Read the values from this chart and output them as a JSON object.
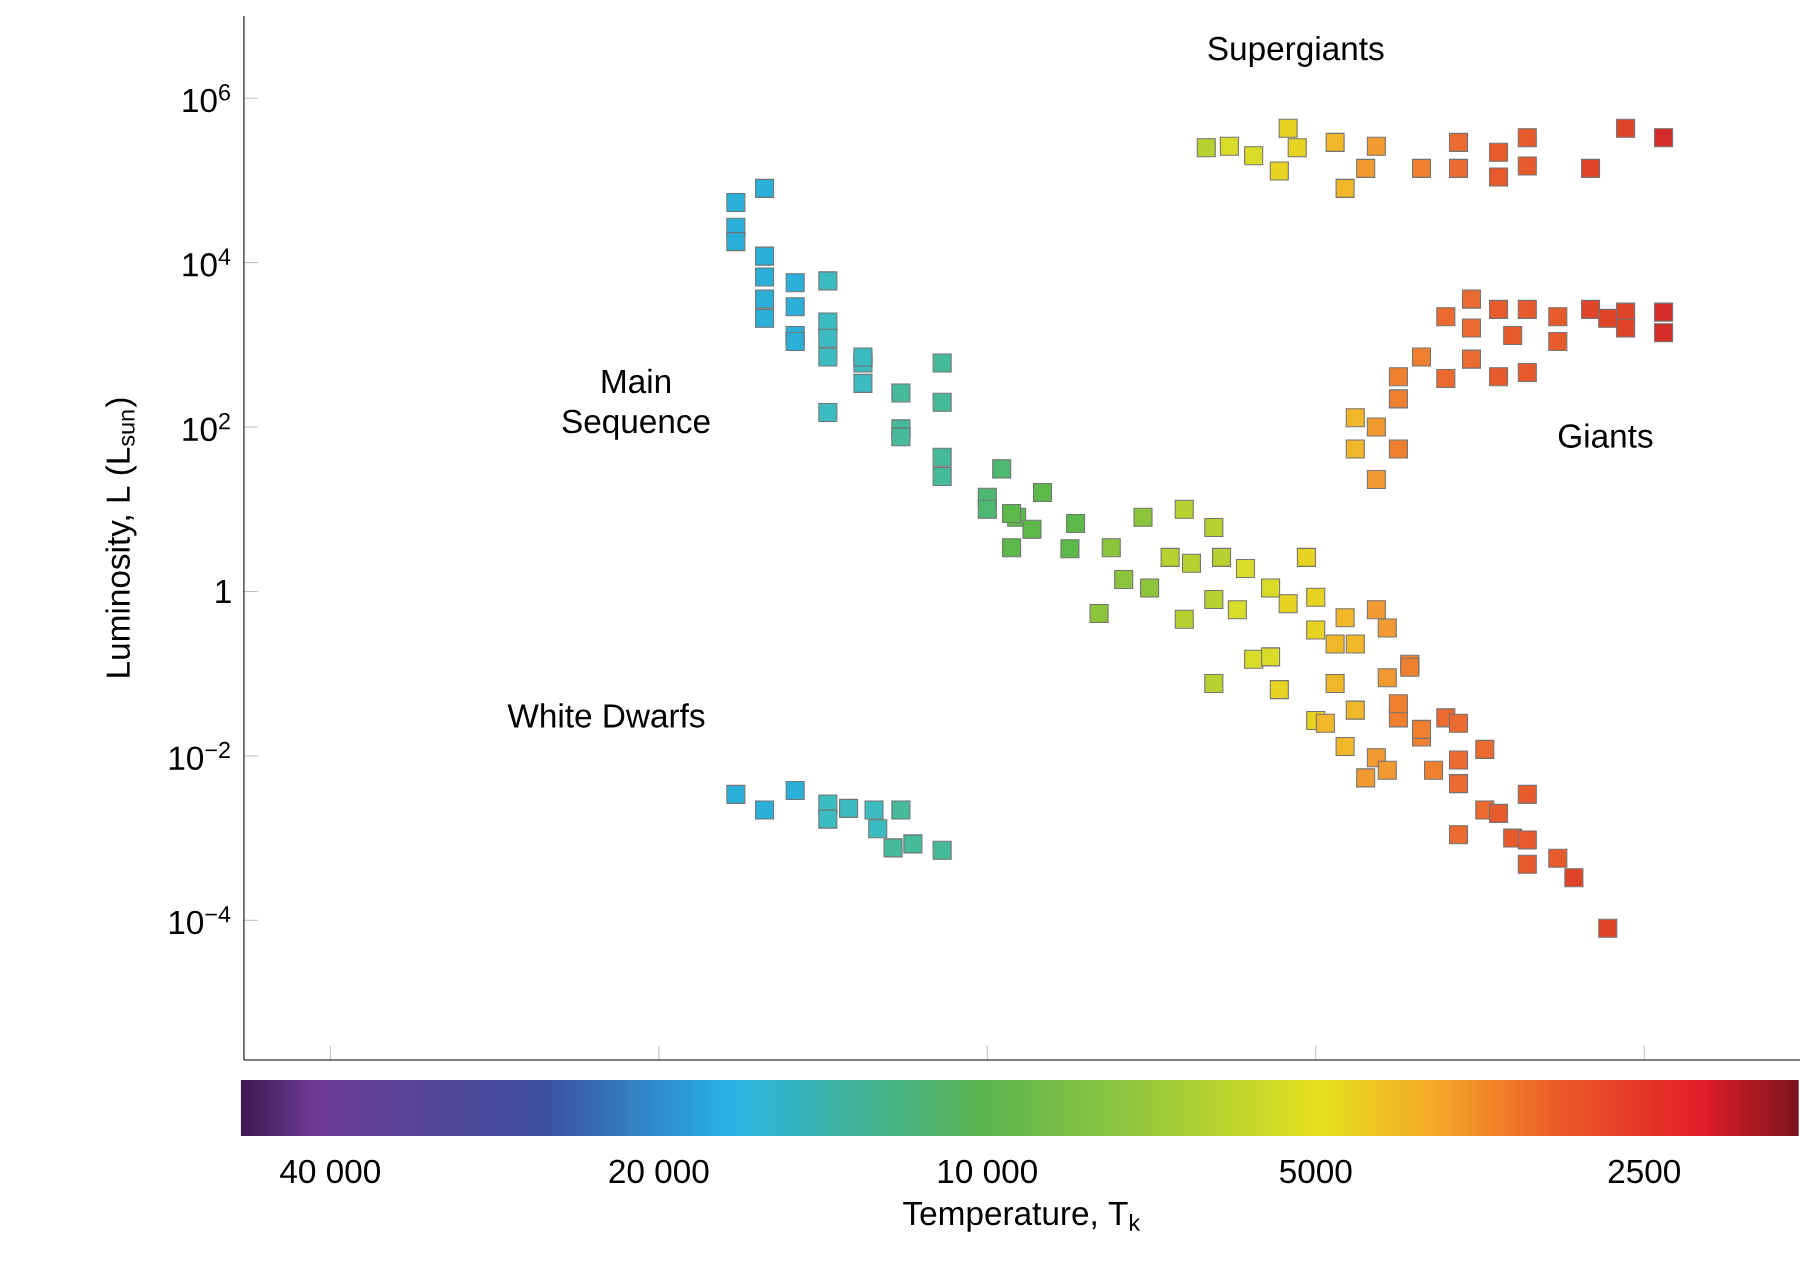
{
  "chart_data": {
    "type": "scatter",
    "xlabel": "Temperature, T$_{k}$",
    "ylabel": "Luminosity, L (L$_{sun}$)",
    "log": "xy",
    "marker": "square",
    "xlim": [
      48000,
      1800
    ],
    "ylim": [
      2e-06,
      10000000.0
    ],
    "xticks": [
      {
        "value": 40000,
        "label": "40 000"
      },
      {
        "value": 20000,
        "label": "20 000"
      },
      {
        "value": 10000,
        "label": "10 000"
      },
      5000,
      2500
    ],
    "yticks": [
      {
        "value": 0.0001,
        "label": "10$^{−4}$"
      },
      {
        "value": 0.01,
        "label": "10$^{−2}$"
      },
      1,
      {
        "value": 100,
        "label": "10$^{2}$"
      },
      {
        "value": 10000,
        "label": "10$^{4}$"
      },
      {
        "value": 1000000,
        "label": "10$^{6}$"
      }
    ],
    "annotations": [
      "Supergiants",
      "Main Sequence",
      "Giants",
      "White Dwarfs"
    ],
    "series": [
      {
        "x": [
          16000,
          17000,
          17000,
          17000,
          16000,
          16000,
          15000,
          14000,
          16000,
          15000,
          16000,
          14000,
          15000,
          15000,
          14000,
          14000,
          13000,
          13000,
          11000,
          13000,
          12000,
          14000,
          12000,
          12000,
          11000,
          11000,
          11000,
          10000,
          9700,
          9400,
          8900,
          9100,
          9500,
          10000,
          9500,
          8300,
          8400,
          7700,
          7200,
          6600,
          6200,
          7900,
          7500,
          7100,
          6800,
          6500,
          6100,
          5800,
          6200,
          6600,
          6200,
          5900,
          5700,
          5500,
          5300,
          5100,
          5000,
          5000,
          5400,
          4700,
          4600,
          4400,
          4300,
          4800,
          5000,
          4600,
          4700,
          4500,
          4300,
          4100,
          4200,
          4000,
          4400,
          5500,
          4800,
          4100,
          4200,
          4000,
          3800,
          3700,
          3500,
          3700,
          3900,
          3700,
          3200,
          3500,
          3400,
          3700,
          3300,
          3200,
          3200,
          3000,
          2900,
          2700,
          4900,
          4300
        ],
        "values": [
          80000,
          54000,
          27000,
          18000,
          12000,
          6700,
          5700,
          6000,
          3600,
          2900,
          2100,
          1900,
          1300,
          1100,
          1200,
          710,
          600,
          710,
          600,
          340,
          260,
          150,
          95,
          76,
          200,
          43,
          25,
          14,
          31,
          8.0,
          16,
          5.7,
          3.4,
          10,
          8.9,
          6.7,
          3.3,
          3.4,
          8.0,
          10,
          6.0,
          0.54,
          1.4,
          1.1,
          2.6,
          2.2,
          2.6,
          1.9,
          0.8,
          0.46,
          0.076,
          0.6,
          0.15,
          1.1,
          0.71,
          2.6,
          0.85,
          0.34,
          0.064,
          0.48,
          0.23,
          0.6,
          0.36,
          0.076,
          0.027,
          0.036,
          0.013,
          0.0054,
          0.089,
          0.13,
          0.029,
          0.017,
          0.0095,
          0.16,
          0.23,
          0.12,
          0.043,
          0.021,
          0.029,
          0.025,
          0.012,
          0.0089,
          0.0067,
          0.0046,
          0.0034,
          0.0022,
          0.002,
          0.0011,
          0.001,
          0.00095,
          0.00048,
          0.00057,
          0.00033,
          8e-05,
          0.025,
          0.0067
        ],
        "colors": [
          "#2ab0d8",
          "#2ab0d8",
          "#2ab0d8",
          "#2ab0d8",
          "#2ab0d8",
          "#2ab0d8",
          "#2ab0d8",
          "#3cbcc0",
          "#2ab0d8",
          "#2ab0d8",
          "#2ab0d8",
          "#3cbcc0",
          "#2ab0d8",
          "#2ab0d8",
          "#3cbcc0",
          "#3cbcc0",
          "#3cbcc0",
          "#3cbcc0",
          "#45bb9a",
          "#3cbcc0",
          "#45bb9a",
          "#3cbcc0",
          "#45bb9a",
          "#45bb9a",
          "#45bb9a",
          "#45bb9a",
          "#45bb9a",
          "#4db870",
          "#4db870",
          "#5cb848",
          "#5cb848",
          "#5cb848",
          "#5cb848",
          "#4db870",
          "#5cb848",
          "#5cb848",
          "#5cb848",
          "#8cc43c",
          "#8cc43c",
          "#b8d030",
          "#b8d030",
          "#8cc43c",
          "#8cc43c",
          "#8cc43c",
          "#b8d030",
          "#b8d030",
          "#b8d030",
          "#d8dc28",
          "#b8d030",
          "#b8d030",
          "#b8d030",
          "#d8dc28",
          "#d8dc28",
          "#d8dc28",
          "#e8d420",
          "#e8d420",
          "#e8d420",
          "#e8d420",
          "#e8d420",
          "#f0b828",
          "#f0b828",
          "#f09a30",
          "#f09a30",
          "#f0b828",
          "#e8d420",
          "#f0b828",
          "#f0b828",
          "#f09a30",
          "#f09a30",
          "#ee8030",
          "#ee8030",
          "#ee8030",
          "#f09a30",
          "#d8dc28",
          "#f0b828",
          "#ee8030",
          "#ee8030",
          "#ee8030",
          "#ea6a30",
          "#ea6a30",
          "#ea6a30",
          "#ea6a30",
          "#ee8030",
          "#ea6a30",
          "#e65a2c",
          "#ea6a30",
          "#e65a2c",
          "#ea6a30",
          "#e65a2c",
          "#e65a2c",
          "#e65a2c",
          "#e65a2c",
          "#e04428",
          "#e04428",
          "#f0b828",
          "#f09a30"
        ]
      },
      {
        "x": [
          6300,
          6000,
          5700,
          5300,
          5200,
          5400,
          4800,
          4700,
          4500,
          4400,
          4000,
          3700,
          3700,
          3400,
          3200,
          3200,
          3400,
          2800,
          2600,
          2400
        ],
        "values": [
          250000,
          260000,
          200000,
          430000,
          250000,
          130000,
          290000,
          80000,
          140000,
          260000,
          140000,
          140000,
          290000,
          220000,
          330000,
          150000,
          110000,
          140000,
          430000,
          330000
        ],
        "colors": [
          "#b8d030",
          "#d8dc28",
          "#d8dc28",
          "#e8d420",
          "#e8d420",
          "#e8d420",
          "#f0b828",
          "#f0b828",
          "#f09a30",
          "#f09a30",
          "#ee8030",
          "#ea6a30",
          "#ea6a30",
          "#e65a2c",
          "#e65a2c",
          "#e65a2c",
          "#e65a2c",
          "#e04428",
          "#e04428",
          "#d42c28"
        ]
      },
      {
        "x": [
          3600,
          3800,
          3600,
          3400,
          3200,
          3000,
          2800,
          2700,
          2600,
          2400,
          2600,
          2400,
          3300,
          3000,
          4000,
          3600,
          4200,
          3800,
          3400,
          3200,
          4200,
          4600,
          4400,
          4600,
          4200,
          4400
        ],
        "values": [
          3600,
          2200,
          1600,
          2700,
          2700,
          2200,
          2700,
          2100,
          2500,
          2500,
          1600,
          1400,
          1300,
          1100,
          710,
          670,
          410,
          390,
          410,
          460,
          220,
          130,
          100,
          54,
          54,
          23
        ],
        "colors": [
          "#ea6a30",
          "#ea6a30",
          "#ea6a30",
          "#e65a2c",
          "#e65a2c",
          "#e65a2c",
          "#e04428",
          "#e04428",
          "#e04428",
          "#d42c28",
          "#e04428",
          "#d42c28",
          "#e65a2c",
          "#e65a2c",
          "#ee8030",
          "#ea6a30",
          "#ee8030",
          "#ea6a30",
          "#e65a2c",
          "#e65a2c",
          "#ee8030",
          "#f0b828",
          "#f09a30",
          "#f0b828",
          "#ee8030",
          "#f09a30"
        ]
      },
      {
        "x": [
          17000,
          16000,
          15000,
          14000,
          14000,
          13400,
          12700,
          12600,
          12000,
          12200,
          11700,
          11000
        ],
        "values": [
          0.0034,
          0.0022,
          0.0038,
          0.0026,
          0.0017,
          0.0023,
          0.0022,
          0.0013,
          0.0022,
          0.00076,
          0.00085,
          0.00071
        ],
        "colors": [
          "#2ab0d8",
          "#2ab0d8",
          "#2ab0d8",
          "#3cbcc0",
          "#3cbcc0",
          "#3cbcc0",
          "#3cbcc0",
          "#3cbcc0",
          "#45bb9a",
          "#45bb9a",
          "#45bb9a",
          "#45bb9a"
        ]
      }
    ]
  }
}
